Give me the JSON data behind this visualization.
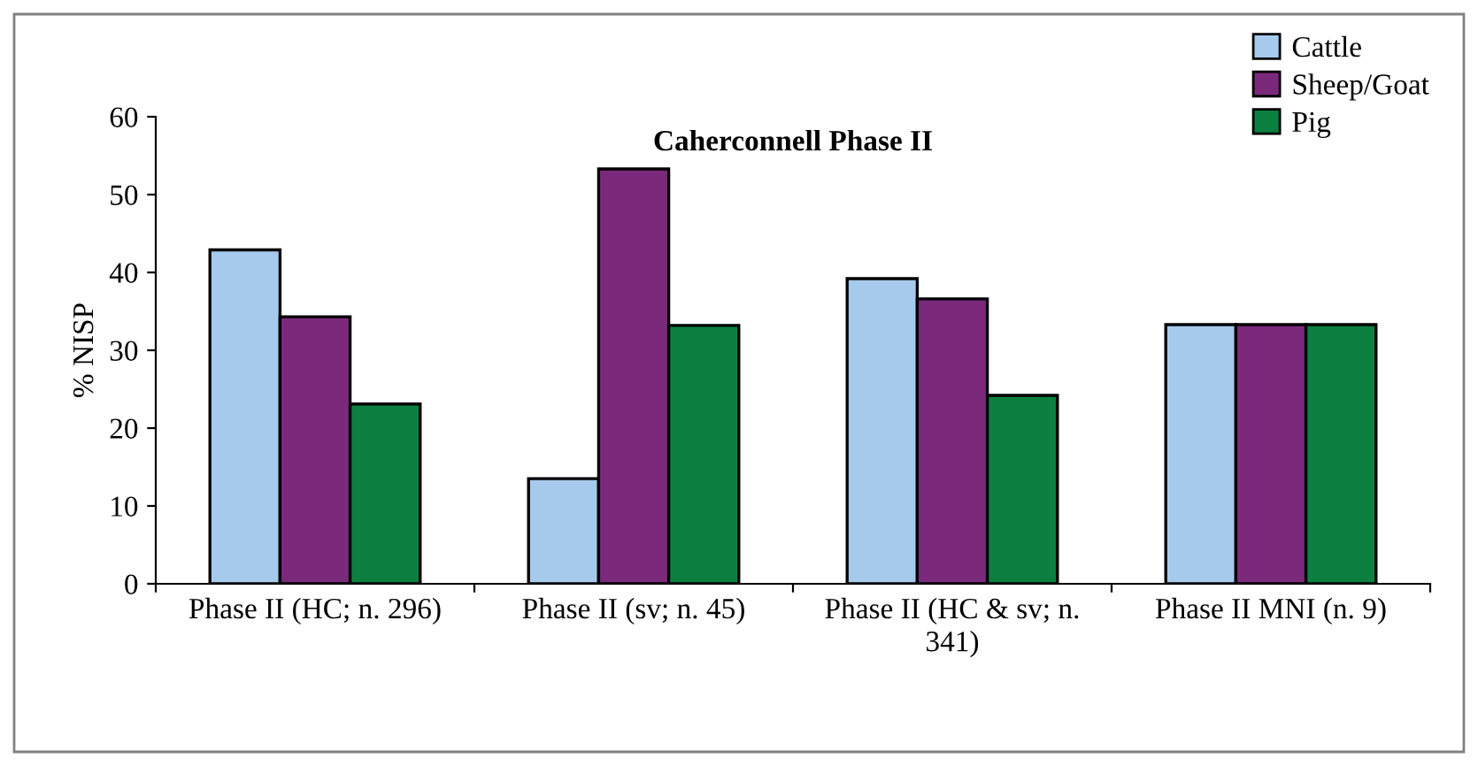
{
  "chart_data": {
    "type": "bar",
    "title": "Caherconnell Phase II",
    "ylabel": "% NISP",
    "categories": [
      "Phase II (HC; n. 296)",
      "Phase II (sv; n. 45)",
      "Phase II (HC & sv; n. 341)",
      "Phase II MNI (n. 9)"
    ],
    "series": [
      {
        "name": "Cattle",
        "color": "#a6caec",
        "values": [
          42.9,
          13.5,
          39.2,
          33.3
        ]
      },
      {
        "name": "Sheep/Goat",
        "color": "#7b2a7b",
        "values": [
          34.3,
          53.3,
          36.6,
          33.3
        ]
      },
      {
        "name": "Pig",
        "color": "#0b8040",
        "values": [
          23.1,
          33.2,
          24.2,
          33.3
        ]
      }
    ],
    "ylim": [
      0,
      60
    ],
    "yticks": [
      0,
      10,
      20,
      30,
      40,
      50,
      60
    ],
    "grid": false,
    "legend": "top right"
  }
}
